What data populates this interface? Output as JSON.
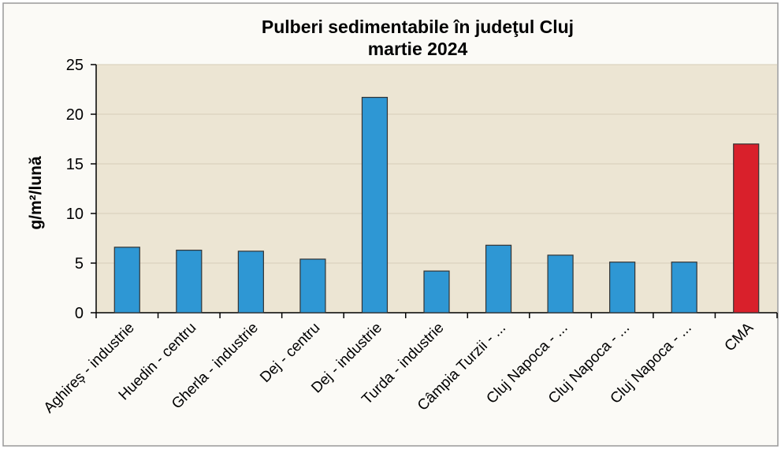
{
  "chart_data": {
    "type": "bar",
    "title": "Pulberi sedimentabile în judeţul Cluj",
    "subtitle": "martie 2024",
    "y_label": "g/m²/lună",
    "categories": [
      "Aghireș - industrie",
      "Huedin - centru",
      "Gherla - industrie",
      "Dej - centru",
      "Dej - industrie",
      "Turda - industrie",
      "Câmpia Turzii - ...",
      "Cluj Napoca - ...",
      "Cluj Napoca - ...",
      "Cluj Napoca - ...",
      "CMA"
    ],
    "values": [
      6.6,
      6.3,
      6.2,
      5.4,
      21.7,
      4.2,
      6.8,
      5.8,
      5.1,
      5.1,
      17.0
    ],
    "colors": [
      "#2e97d4",
      "#2e97d4",
      "#2e97d4",
      "#2e97d4",
      "#2e97d4",
      "#2e97d4",
      "#2e97d4",
      "#2e97d4",
      "#2e97d4",
      "#2e97d4",
      "#d9202b"
    ],
    "ylim": [
      0,
      25
    ],
    "yticks": [
      0,
      5,
      10,
      15,
      20,
      25
    ],
    "grid": true
  }
}
